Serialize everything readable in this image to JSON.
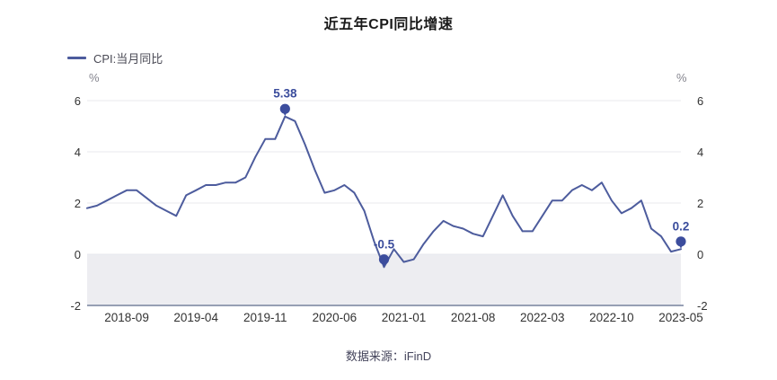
{
  "title": "近五年CPI同比增速",
  "legend": {
    "label": "CPI:当月同比"
  },
  "y_axis": {
    "unit_left": "%",
    "unit_right": "%"
  },
  "footer": {
    "source": "数据来源：iFinD"
  },
  "colors": {
    "line": "#4d5c9d",
    "marker": "#3c4d9d",
    "annotation_text": "#3a4c9c",
    "grid": "#e8e9ee",
    "band": "#ededf1",
    "axis_line": "#76829e",
    "tick_text": "#333333"
  },
  "chart_data": {
    "type": "line",
    "title": "近五年CPI同比增速",
    "series_name": "CPI:当月同比",
    "ylabel": "%",
    "ylim": [
      -2,
      6
    ],
    "yticks": [
      -2,
      0,
      2,
      4,
      6
    ],
    "grid": true,
    "legend_position": "top-left",
    "shaded_band": {
      "from": -2,
      "to": 0
    },
    "xtick_labels": [
      "2018-09",
      "2019-04",
      "2019-11",
      "2020-06",
      "2021-01",
      "2021-08",
      "2022-03",
      "2022-10",
      "2023-05"
    ],
    "x": [
      "2018-05",
      "2018-06",
      "2018-07",
      "2018-08",
      "2018-09",
      "2018-10",
      "2018-11",
      "2018-12",
      "2019-01",
      "2019-02",
      "2019-03",
      "2019-04",
      "2019-05",
      "2019-06",
      "2019-07",
      "2019-08",
      "2019-09",
      "2019-10",
      "2019-11",
      "2019-12",
      "2020-01",
      "2020-02",
      "2020-03",
      "2020-04",
      "2020-05",
      "2020-06",
      "2020-07",
      "2020-08",
      "2020-09",
      "2020-10",
      "2020-11",
      "2020-12",
      "2021-01",
      "2021-02",
      "2021-03",
      "2021-04",
      "2021-05",
      "2021-06",
      "2021-07",
      "2021-08",
      "2021-09",
      "2021-10",
      "2021-11",
      "2021-12",
      "2022-01",
      "2022-02",
      "2022-03",
      "2022-04",
      "2022-05",
      "2022-06",
      "2022-07",
      "2022-08",
      "2022-09",
      "2022-10",
      "2022-11",
      "2022-12",
      "2023-01",
      "2023-02",
      "2023-03",
      "2023-04",
      "2023-05"
    ],
    "values": [
      1.8,
      1.9,
      2.1,
      2.3,
      2.5,
      2.5,
      2.2,
      1.9,
      1.7,
      1.5,
      2.3,
      2.5,
      2.7,
      2.7,
      2.8,
      2.8,
      3.0,
      3.8,
      4.5,
      4.5,
      5.38,
      5.2,
      4.3,
      3.3,
      2.4,
      2.5,
      2.7,
      2.4,
      1.7,
      0.5,
      -0.5,
      0.2,
      -0.3,
      -0.2,
      0.4,
      0.9,
      1.3,
      1.1,
      1.0,
      0.8,
      0.7,
      1.5,
      2.3,
      1.5,
      0.9,
      0.9,
      1.5,
      2.1,
      2.1,
      2.5,
      2.7,
      2.5,
      2.8,
      2.1,
      1.6,
      1.8,
      2.1,
      1.0,
      0.7,
      0.1,
      0.2
    ],
    "annotations": [
      {
        "x": "2020-01",
        "y": 5.38,
        "label": "5.38"
      },
      {
        "x": "2020-11",
        "y": -0.5,
        "label": "-0.5"
      },
      {
        "x": "2023-05",
        "y": 0.2,
        "label": "0.2"
      }
    ]
  }
}
